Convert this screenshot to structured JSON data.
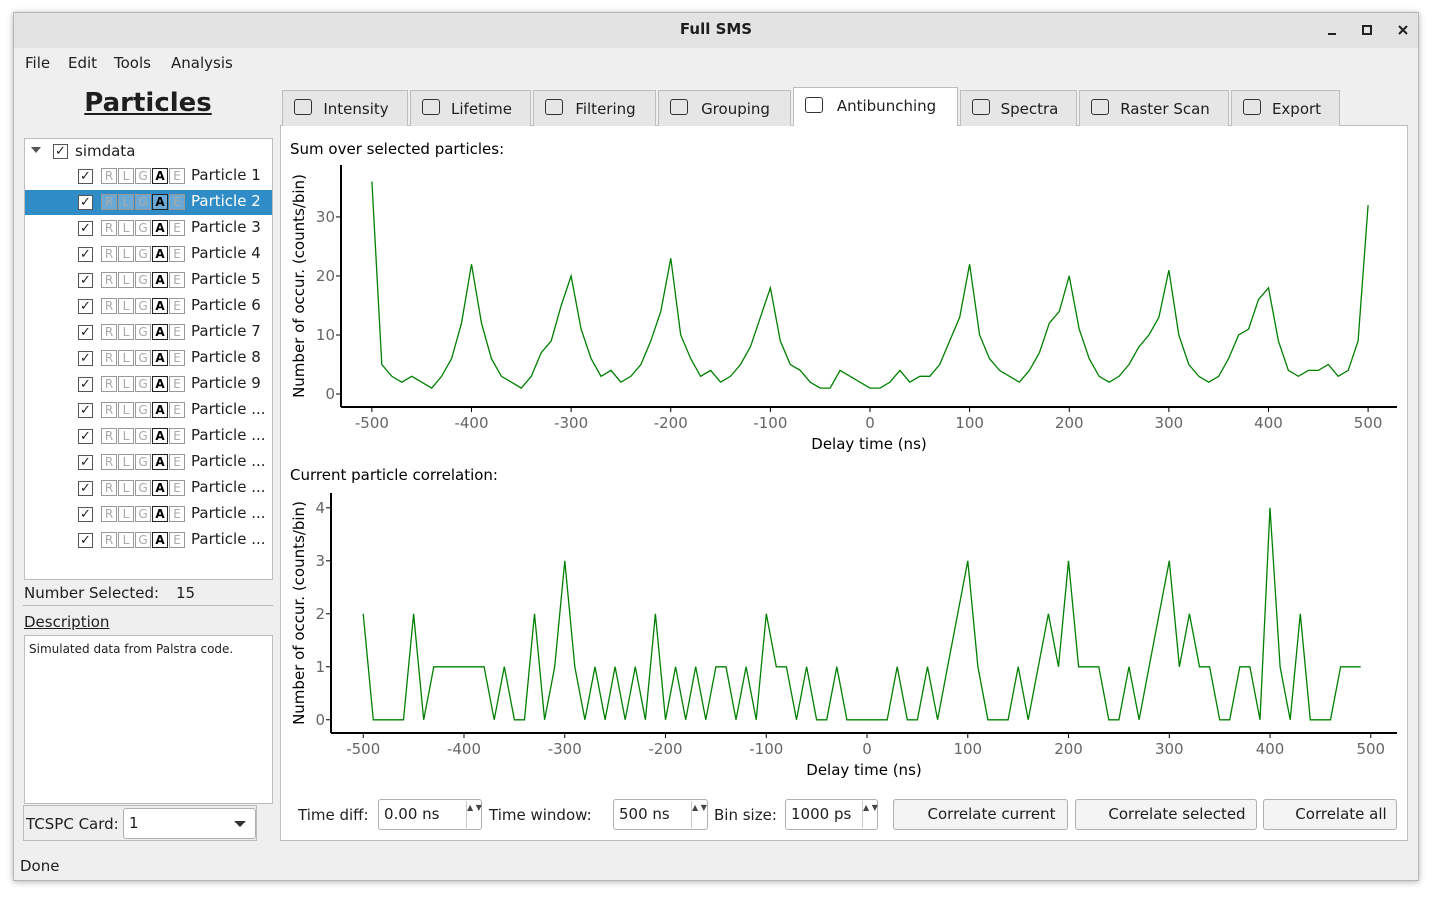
{
  "window": {
    "title": "Full SMS"
  },
  "menu": [
    "File",
    "Edit",
    "Tools",
    "Analysis"
  ],
  "particles_panel": {
    "heading": "Particles",
    "tree": {
      "root": "simdata",
      "status_letters": [
        "R",
        "L",
        "G",
        "A",
        "E"
      ],
      "items": [
        "Particle 1",
        "Particle 2",
        "Particle 3",
        "Particle 4",
        "Particle 5",
        "Particle 6",
        "Particle 7",
        "Particle 8",
        "Particle 9",
        "Particle ...",
        "Particle ...",
        "Particle ...",
        "Particle ...",
        "Particle ...",
        "Particle ..."
      ],
      "selected": 1
    },
    "number_selected_label": "Number Selected:",
    "number_selected": 15,
    "description_label": "Description",
    "description": "Simulated data from Palstra code.",
    "tcspc_label": "TCSPC Card:",
    "tcspc_value": "1"
  },
  "tabs": {
    "items": [
      "Intensity",
      "Lifetime",
      "Filtering",
      "Grouping",
      "Antibunching",
      "Spectra",
      "Raster Scan",
      "Export"
    ],
    "active": 4
  },
  "chart_data": [
    {
      "type": "line",
      "title": "Sum over selected particles:",
      "xlabel": "Delay time (ns)",
      "ylabel": "Number of occur. (counts/bin)",
      "x": [
        -500,
        -490,
        -480,
        -470,
        -460,
        -450,
        -440,
        -430,
        -420,
        -410,
        -400,
        -390,
        -380,
        -370,
        -360,
        -350,
        -340,
        -330,
        -320,
        -310,
        -300,
        -290,
        -280,
        -270,
        -260,
        -250,
        -240,
        -230,
        -220,
        -210,
        -200,
        -190,
        -180,
        -170,
        -160,
        -150,
        -140,
        -130,
        -120,
        -110,
        -100,
        -90,
        -80,
        -70,
        -60,
        -50,
        -40,
        -30,
        -20,
        -10,
        0,
        10,
        20,
        30,
        40,
        50,
        60,
        70,
        80,
        90,
        100,
        110,
        120,
        130,
        140,
        150,
        160,
        170,
        180,
        190,
        200,
        210,
        220,
        230,
        240,
        250,
        260,
        270,
        280,
        290,
        300,
        310,
        320,
        330,
        340,
        350,
        360,
        370,
        380,
        390,
        400,
        410,
        420,
        430,
        440,
        450,
        460,
        470,
        480,
        490,
        500
      ],
      "series": [
        {
          "color": "#008000",
          "values": [
            36,
            5,
            3,
            2,
            3,
            2,
            1,
            3,
            6,
            12,
            22,
            12,
            6,
            3,
            2,
            1,
            3,
            7,
            9,
            15,
            20,
            11,
            6,
            3,
            4,
            2,
            3,
            5,
            9,
            14,
            23,
            10,
            6,
            3,
            4,
            2,
            3,
            5,
            8,
            13,
            18,
            9,
            5,
            4,
            2,
            1,
            1,
            4,
            3,
            2,
            1,
            1,
            2,
            4,
            2,
            3,
            3,
            5,
            9,
            13,
            22,
            10,
            6,
            4,
            3,
            2,
            4,
            7,
            12,
            14,
            20,
            11,
            6,
            3,
            2,
            3,
            5,
            8,
            10,
            13,
            21,
            10,
            5,
            3,
            2,
            3,
            6,
            10,
            11,
            16,
            18,
            9,
            4,
            3,
            4,
            4,
            5,
            3,
            4,
            9,
            32
          ]
        }
      ],
      "xlim": [
        -531,
        529
      ],
      "ylim": [
        -2.2,
        38.8
      ],
      "xticks": [
        -500,
        -400,
        -300,
        -200,
        -100,
        0,
        100,
        200,
        300,
        400,
        500
      ],
      "yticks": [
        0,
        10,
        20,
        30
      ]
    },
    {
      "type": "line",
      "title": "Current particle correlation:",
      "xlabel": "Delay time (ns)",
      "ylabel": "Number of occur. (counts/bin)",
      "x": [
        -500,
        -490,
        -480,
        -470,
        -460,
        -450,
        -440,
        -430,
        -420,
        -410,
        -400,
        -390,
        -380,
        -370,
        -360,
        -350,
        -340,
        -330,
        -320,
        -310,
        -300,
        -290,
        -280,
        -270,
        -260,
        -250,
        -240,
        -230,
        -220,
        -210,
        -200,
        -190,
        -180,
        -170,
        -160,
        -150,
        -140,
        -130,
        -120,
        -110,
        -100,
        -90,
        -80,
        -70,
        -60,
        -50,
        -40,
        -30,
        -20,
        -10,
        0,
        10,
        20,
        30,
        40,
        50,
        60,
        70,
        80,
        90,
        100,
        110,
        120,
        130,
        140,
        150,
        160,
        170,
        180,
        190,
        200,
        210,
        220,
        230,
        240,
        250,
        260,
        270,
        280,
        290,
        300,
        310,
        320,
        330,
        340,
        350,
        360,
        370,
        380,
        390,
        400,
        410,
        420,
        430,
        440,
        450,
        460,
        470,
        480,
        490
      ],
      "series": [
        {
          "color": "#008000",
          "values": [
            2,
            0,
            0,
            0,
            0,
            2,
            0,
            1,
            1,
            1,
            1,
            1,
            1,
            0,
            1,
            0,
            0,
            2,
            0,
            1,
            3,
            1,
            0,
            1,
            0,
            1,
            0,
            1,
            0,
            2,
            0,
            1,
            0,
            1,
            0,
            1,
            1,
            0,
            1,
            0,
            2,
            1,
            1,
            0,
            1,
            0,
            0,
            1,
            0,
            0,
            0,
            0,
            0,
            1,
            0,
            0,
            1,
            0,
            1,
            2,
            3,
            1,
            0,
            0,
            0,
            1,
            0,
            1,
            2,
            1,
            3,
            1,
            1,
            1,
            0,
            0,
            1,
            0,
            1,
            2,
            3,
            1,
            2,
            1,
            1,
            0,
            0,
            1,
            1,
            0,
            4,
            1,
            0,
            2,
            0,
            0,
            0,
            1,
            1,
            1
          ]
        }
      ],
      "xlim": [
        -532,
        526
      ],
      "ylim": [
        -0.25,
        4.28
      ],
      "xticks": [
        -500,
        -400,
        -300,
        -200,
        -100,
        0,
        100,
        200,
        300,
        400,
        500
      ],
      "yticks": [
        0,
        1,
        2,
        3,
        4
      ]
    }
  ],
  "controls": {
    "time_diff_label": "Time diff:",
    "time_diff": "0.00 ns",
    "time_window_label": "Time window:",
    "time_window": "500 ns",
    "bin_size_label": "Bin size:",
    "bin_size": "1000 ps",
    "buttons": [
      "Correlate current",
      "Correlate selected",
      "Correlate all"
    ]
  },
  "status": "Done"
}
